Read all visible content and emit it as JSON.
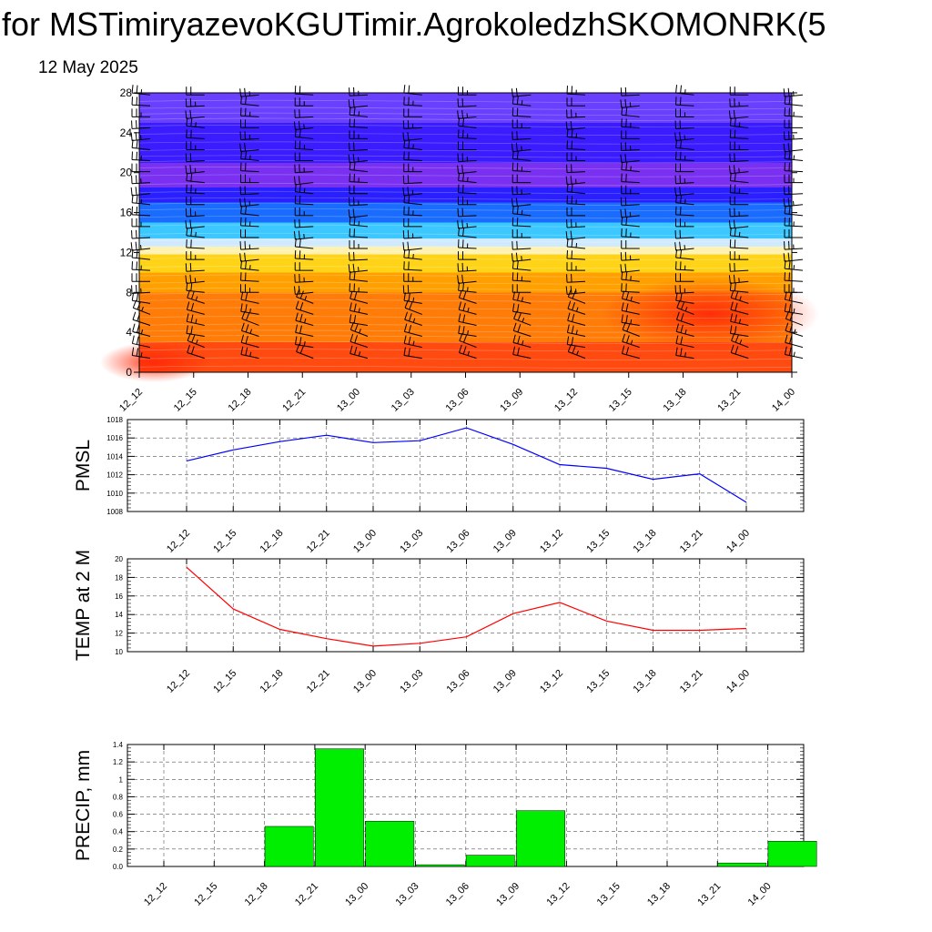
{
  "header": {
    "title": "for MSTimiryazevoKGUTimir.AgrokoledzhSKOMONRK(5",
    "date": "12 May 2025"
  },
  "times": [
    "12_12",
    "12_15",
    "12_18",
    "12_21",
    "13_00",
    "13_03",
    "13_06",
    "13_09",
    "13_12",
    "13_15",
    "13_18",
    "13_21",
    "14_00"
  ],
  "chart_data": [
    {
      "type": "heatmap",
      "name": "cross-section",
      "yticks": [
        0,
        4,
        8,
        12,
        16,
        20,
        24,
        28
      ],
      "ylim": [
        0,
        28
      ],
      "xlabel": "",
      "ylabel": "",
      "colorbands": [
        {
          "from": 0,
          "to": 3,
          "color": "#ff4a10"
        },
        {
          "from": 3,
          "to": 8,
          "color": "#ff7c08"
        },
        {
          "from": 8,
          "to": 10,
          "color": "#ffa000"
        },
        {
          "from": 10,
          "to": 11.8,
          "color": "#ffd418"
        },
        {
          "from": 11.8,
          "to": 12.6,
          "color": "#fff2b0"
        },
        {
          "from": 12.6,
          "to": 13.4,
          "color": "#cfeaff"
        },
        {
          "from": 13.4,
          "to": 15,
          "color": "#3cc8ff"
        },
        {
          "from": 15,
          "to": 17,
          "color": "#1a6cff"
        },
        {
          "from": 17,
          "to": 18.5,
          "color": "#2a20ff"
        },
        {
          "from": 18.5,
          "to": 21,
          "color": "#7a30f0"
        },
        {
          "from": 21,
          "to": 25,
          "color": "#3a1cff"
        },
        {
          "from": 25,
          "to": 28,
          "color": "#6a40ff"
        }
      ],
      "colors": {
        "hot_spot": "#ff2a08",
        "barb": "#000000"
      }
    },
    {
      "type": "line",
      "series": [
        {
          "name": "PMSL",
          "values": [
            1013.5,
            1014.7,
            1015.6,
            1016.3,
            1015.5,
            1015.7,
            1017.1,
            1015.3,
            1013.1,
            1012.7,
            1011.5,
            1012.1,
            1009.0
          ],
          "color": "#0000ff"
        }
      ],
      "ylabel": "PMSL",
      "yticks": [
        1008,
        1010,
        1012,
        1014,
        1016,
        1018
      ],
      "ylim": [
        1008,
        1018
      ],
      "grid": true
    },
    {
      "type": "line",
      "series": [
        {
          "name": "TEMP at 2 M",
          "values": [
            19.1,
            14.6,
            12.4,
            11.4,
            10.6,
            10.9,
            11.6,
            14.1,
            15.3,
            13.3,
            12.3,
            12.3,
            12.5
          ],
          "color": "#ff0000"
        }
      ],
      "ylabel": "TEMP at 2 M",
      "yticks": [
        10,
        12,
        14,
        16,
        18,
        20
      ],
      "ylim": [
        10,
        20
      ],
      "grid": true
    },
    {
      "type": "bar",
      "series": [
        {
          "name": "PRECIP, mm",
          "values": [
            0,
            0,
            0.46,
            1.35,
            0.52,
            0.02,
            0.13,
            0.64,
            0,
            0,
            0,
            0.04,
            0.29
          ],
          "color": "#00ee00"
        }
      ],
      "ylabel": "PRECIP, mm",
      "ytick_labels": [
        "0.0",
        "0.2",
        "0.4",
        "0.6",
        "0.8",
        "1",
        "1.2",
        "1.4"
      ],
      "yticks": [
        0,
        0.2,
        0.4,
        0.6,
        0.8,
        1.0,
        1.2,
        1.4
      ],
      "ylim": [
        0,
        1.4
      ],
      "grid": true
    }
  ]
}
